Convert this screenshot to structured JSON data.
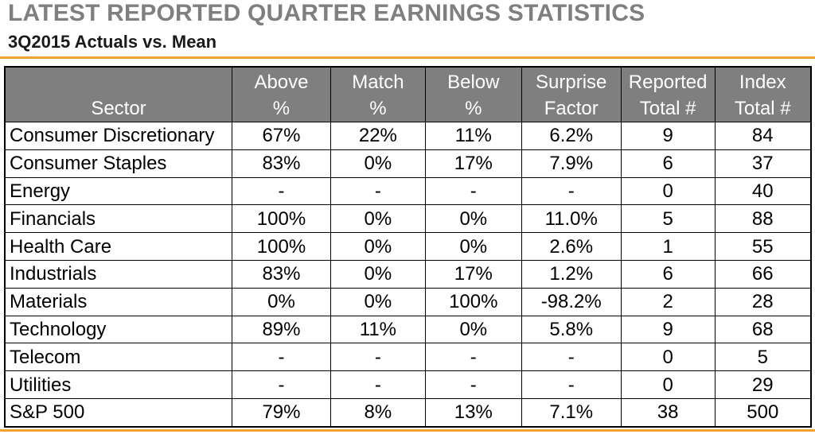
{
  "header": {
    "title": "LATEST REPORTED QUARTER EARNINGS STATISTICS",
    "subtitle": "3Q2015 Actuals vs. Mean"
  },
  "colors": {
    "accent": "#f0a22e",
    "header_bg": "#7f7f7f",
    "title": "#7f7f7f"
  },
  "table": {
    "columns": [
      {
        "line1": "",
        "line2": "Sector"
      },
      {
        "line1": "Above",
        "line2": "%"
      },
      {
        "line1": "Match",
        "line2": "%"
      },
      {
        "line1": "Below",
        "line2": "%"
      },
      {
        "line1": "Surprise",
        "line2": "Factor"
      },
      {
        "line1": "Reported",
        "line2": "Total #"
      },
      {
        "line1": "Index",
        "line2": "Total #"
      }
    ],
    "rows": [
      [
        "Consumer Discretionary",
        "67%",
        "22%",
        "11%",
        "6.2%",
        "9",
        "84"
      ],
      [
        "Consumer Staples",
        "83%",
        "0%",
        "17%",
        "7.9%",
        "6",
        "37"
      ],
      [
        "Energy",
        "-",
        "-",
        "-",
        "-",
        "0",
        "40"
      ],
      [
        "Financials",
        "100%",
        "0%",
        "0%",
        "11.0%",
        "5",
        "88"
      ],
      [
        "Health Care",
        "100%",
        "0%",
        "0%",
        "2.6%",
        "1",
        "55"
      ],
      [
        "Industrials",
        "83%",
        "0%",
        "17%",
        "1.2%",
        "6",
        "66"
      ],
      [
        "Materials",
        "0%",
        "0%",
        "100%",
        "-98.2%",
        "2",
        "28"
      ],
      [
        "Technology",
        "89%",
        "11%",
        "0%",
        "5.8%",
        "9",
        "68"
      ],
      [
        "Telecom",
        "-",
        "-",
        "-",
        "-",
        "0",
        "5"
      ],
      [
        "Utilities",
        "-",
        "-",
        "-",
        "-",
        "0",
        "29"
      ],
      [
        "S&P 500",
        "79%",
        "8%",
        "13%",
        "7.1%",
        "38",
        "500"
      ]
    ]
  }
}
